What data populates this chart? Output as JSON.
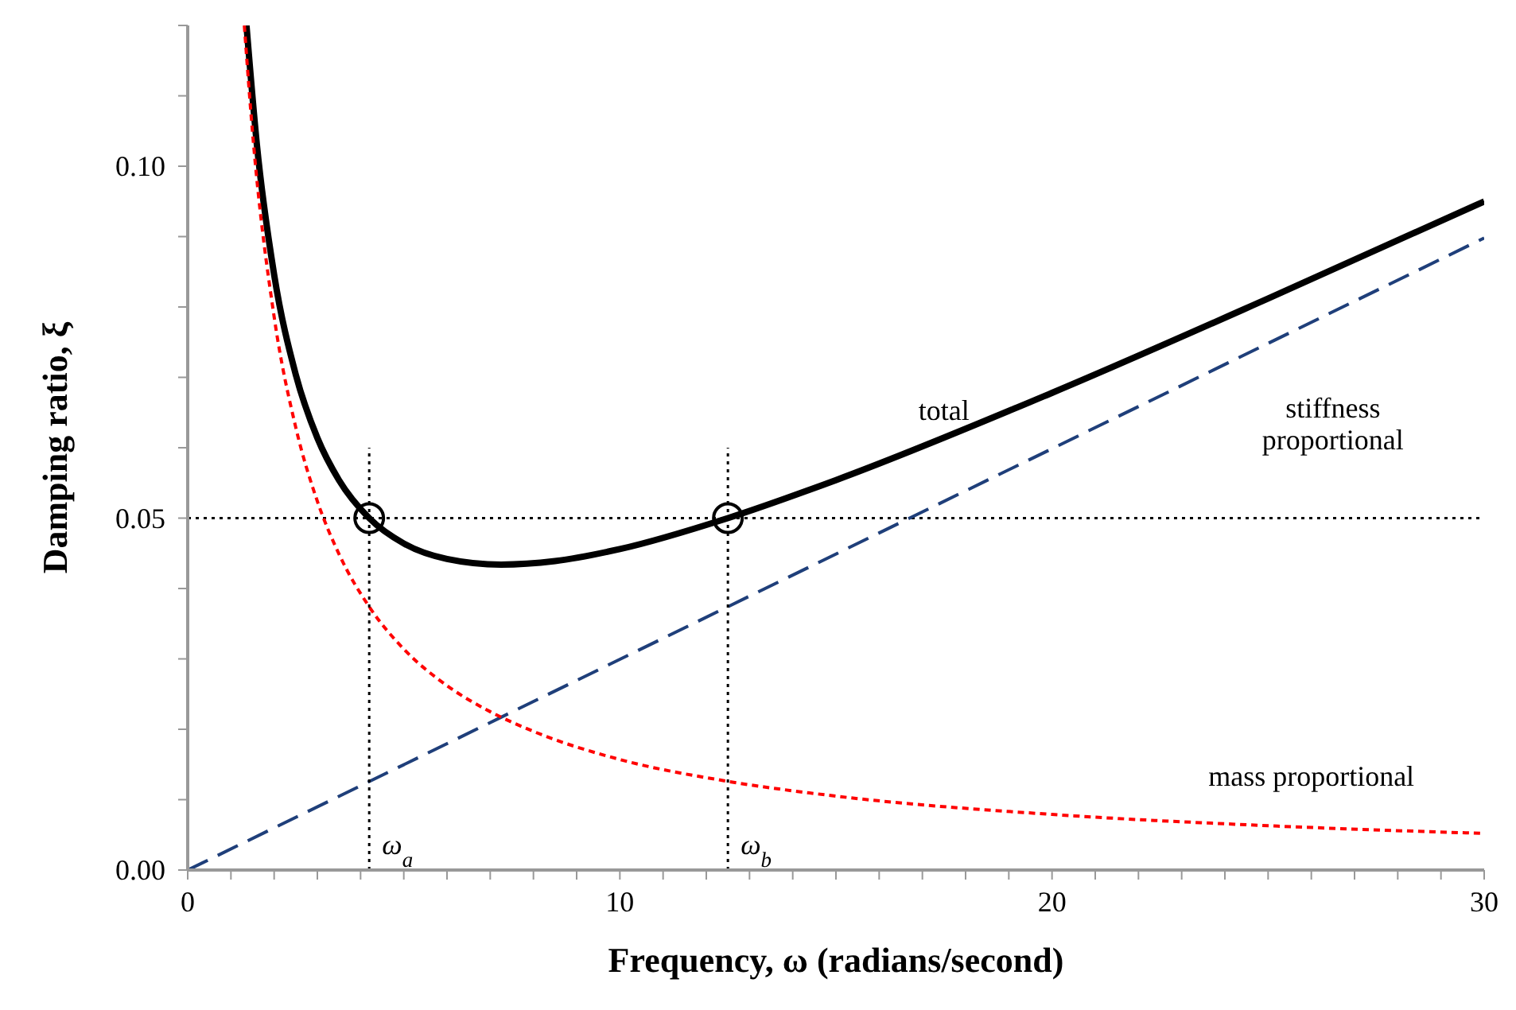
{
  "chart_data": {
    "type": "line",
    "xlabel": "Frequency, ω  (radians/second)",
    "ylabel": "Damping ratio, ξ",
    "xlim": [
      0,
      30
    ],
    "ylim": [
      0,
      0.12
    ],
    "xticks": [
      0,
      {
        "value": 1,
        "label": null
      },
      {
        "value": 2,
        "label": null
      },
      {
        "value": 3,
        "label": null
      },
      {
        "value": 4,
        "label": null
      },
      {
        "value": 5,
        "label": null
      },
      {
        "value": 6,
        "label": null
      },
      {
        "value": 7,
        "label": null
      },
      {
        "value": 8,
        "label": null
      },
      {
        "value": 9,
        "label": null
      },
      10,
      {
        "value": 11,
        "label": null
      },
      {
        "value": 12,
        "label": null
      },
      {
        "value": 13,
        "label": null
      },
      {
        "value": 14,
        "label": null
      },
      {
        "value": 15,
        "label": null
      },
      {
        "value": 16,
        "label": null
      },
      {
        "value": 17,
        "label": null
      },
      {
        "value": 18,
        "label": null
      },
      {
        "value": 19,
        "label": null
      },
      20,
      {
        "value": 21,
        "label": null
      },
      {
        "value": 22,
        "label": null
      },
      {
        "value": 23,
        "label": null
      },
      {
        "value": 24,
        "label": null
      },
      {
        "value": 25,
        "label": null
      },
      {
        "value": 26,
        "label": null
      },
      {
        "value": 27,
        "label": null
      },
      {
        "value": 28,
        "label": null
      },
      {
        "value": 29,
        "label": null
      },
      30
    ],
    "yticks": [
      {
        "value": 0,
        "label": "0.00"
      },
      {
        "value": 0.01,
        "label": null
      },
      {
        "value": 0.02,
        "label": null
      },
      {
        "value": 0.03,
        "label": null
      },
      {
        "value": 0.04,
        "label": null
      },
      {
        "value": 0.05,
        "label": "0.05"
      },
      {
        "value": 0.06,
        "label": null
      },
      {
        "value": 0.07,
        "label": null
      },
      {
        "value": 0.08,
        "label": null
      },
      {
        "value": 0.09,
        "label": null
      },
      {
        "value": 0.1,
        "label": "0.10"
      },
      {
        "value": 0.11,
        "label": null
      },
      {
        "value": 0.12,
        "label": null
      }
    ],
    "series": [
      {
        "name": "total",
        "color": "#000000",
        "line_style": "solid",
        "x": [
          1.36,
          1.6,
          2,
          2.5,
          3,
          3.5,
          4.2,
          5,
          6,
          7.25,
          8.5,
          10,
          12.5,
          15,
          20,
          25,
          30
        ],
        "values": [
          0.12,
          0.1031,
          0.0846,
          0.0704,
          0.0614,
          0.0554,
          0.05,
          0.0464,
          0.0442,
          0.0434,
          0.0439,
          0.0456,
          0.05,
          0.0554,
          0.0678,
          0.0812,
          0.095
        ]
      },
      {
        "name": "stiffness proportional",
        "color": "#1f3f7a",
        "line_style": "dashed",
        "x": [
          0,
          30
        ],
        "values": [
          0,
          0.0898
        ]
      },
      {
        "name": "mass proportional",
        "color": "#ff0000",
        "line_style": "dotted",
        "x": [
          1.31,
          1.5,
          2,
          2.5,
          3,
          3.5,
          4.2,
          5,
          6,
          7,
          8,
          10,
          12.5,
          15,
          20,
          25,
          30
        ],
        "values": [
          0.12,
          0.1048,
          0.0786,
          0.0629,
          0.0524,
          0.0449,
          0.0374,
          0.0314,
          0.0262,
          0.0225,
          0.0197,
          0.0157,
          0.0126,
          0.0105,
          0.0079,
          0.0063,
          0.0052
        ]
      },
      {
        "type": "scatter",
        "marker": "circle",
        "color": "#000000",
        "x": [
          4.2,
          12.5
        ],
        "values": [
          0.05,
          0.05
        ]
      },
      {
        "color": "#000000",
        "line_style": "dotted",
        "x": [
          4.2,
          4.2
        ],
        "values": [
          0,
          0.06
        ]
      },
      {
        "color": "#000000",
        "line_style": "dotted",
        "x": [
          12.5,
          12.5
        ],
        "values": [
          0,
          0.06
        ]
      }
    ],
    "ref_lines": [
      {
        "axis": "y",
        "value": 0.05,
        "color": "#000000",
        "line_style": "dotted"
      }
    ],
    "annotations": [
      {
        "text": "ω$_{a}$",
        "x": 4.2,
        "y": 0
      },
      {
        "text": "ω$_{b}$",
        "x": 12.5,
        "y": 0
      }
    ]
  }
}
